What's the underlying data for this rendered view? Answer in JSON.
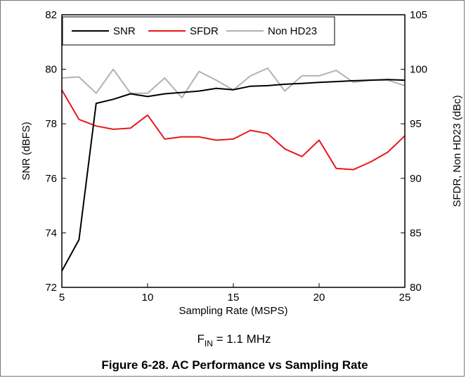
{
  "chart_data": {
    "type": "line",
    "xlabel": "Sampling Rate (MSPS)",
    "ylabel": "SNR (dBFS)",
    "y2label": "SFDR, Non HD23 (dBc)",
    "xlim": [
      5,
      25
    ],
    "ylim": [
      72,
      82
    ],
    "y2lim": [
      80,
      105
    ],
    "x_ticks": [
      "5",
      "10",
      "15",
      "20",
      "25"
    ],
    "y_ticks": [
      "72",
      "74",
      "76",
      "78",
      "80",
      "82"
    ],
    "y2_ticks": [
      "80",
      "85",
      "90",
      "95",
      "100",
      "105"
    ],
    "grid": false,
    "legend_position": "top",
    "series": [
      {
        "name": "SNR",
        "axis": "left",
        "color": "#000000",
        "x": [
          5,
          6,
          7,
          8,
          9,
          10,
          11,
          12,
          13,
          14,
          15,
          16,
          17,
          18,
          19,
          20,
          21,
          22,
          23,
          24,
          25
        ],
        "y": [
          72.6,
          73.75,
          78.75,
          78.9,
          79.1,
          79.0,
          79.1,
          79.15,
          79.2,
          79.3,
          79.25,
          79.38,
          79.4,
          79.45,
          79.48,
          79.52,
          79.55,
          79.58,
          79.6,
          79.62,
          79.6
        ]
      },
      {
        "name": "SFDR",
        "axis": "right",
        "color": "#e8171b",
        "x": [
          5,
          6,
          7,
          8,
          9,
          10,
          11,
          12,
          13,
          14,
          15,
          16,
          17,
          18,
          19,
          20,
          21,
          22,
          23,
          24,
          25
        ],
        "y": [
          98.1,
          95.4,
          94.8,
          94.5,
          94.6,
          95.8,
          93.6,
          93.8,
          93.8,
          93.5,
          93.6,
          94.4,
          94.1,
          92.7,
          92.0,
          93.5,
          90.9,
          90.8,
          91.5,
          92.4,
          93.9
        ]
      },
      {
        "name": "Non HD23",
        "axis": "right",
        "color": "#b2b2b2",
        "x": [
          5,
          6,
          7,
          8,
          9,
          10,
          11,
          12,
          13,
          14,
          15,
          16,
          17,
          18,
          19,
          20,
          21,
          22,
          23,
          24,
          25
        ],
        "y": [
          99.2,
          99.3,
          97.8,
          100.0,
          97.8,
          97.8,
          99.2,
          97.4,
          99.8,
          99.0,
          98.1,
          99.4,
          100.1,
          98.0,
          99.4,
          99.4,
          99.9,
          98.8,
          99.0,
          99.0,
          98.5
        ]
      }
    ]
  },
  "conditions": {
    "fin_base": "F",
    "fin_sub": "IN",
    "fin_rest": " = 1.1 MHz"
  },
  "caption": "Figure 6-28. AC Performance vs Sampling Rate"
}
